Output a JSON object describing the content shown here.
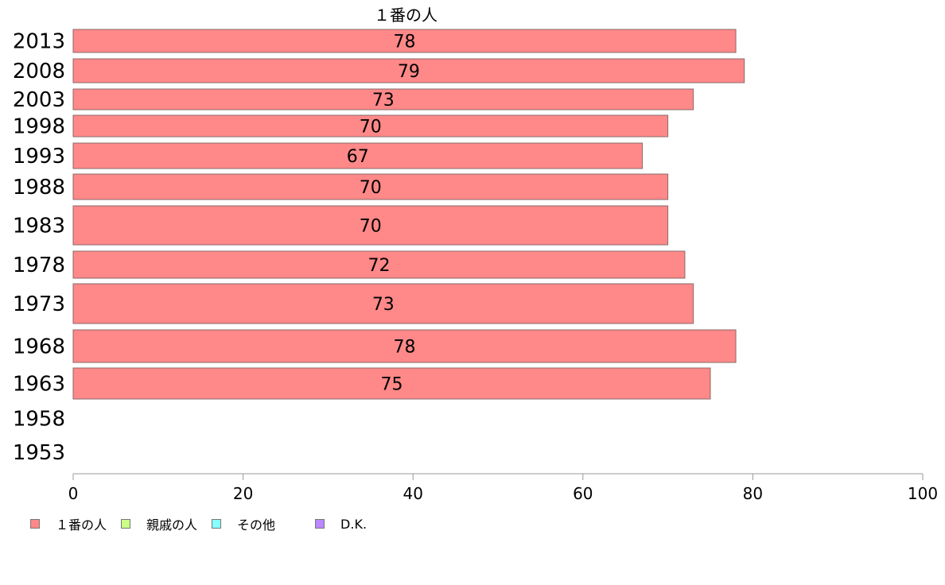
{
  "chart_data": {
    "type": "bar",
    "orientation": "horizontal",
    "title": "１番の人",
    "categories": [
      "2013",
      "2008",
      "2003",
      "1998",
      "1993",
      "1988",
      "1983",
      "1978",
      "1973",
      "1968",
      "1963",
      "1958",
      "1953"
    ],
    "series": [
      {
        "name": "１番の人",
        "color": "#ff8888",
        "values": [
          78,
          79,
          73,
          70,
          67,
          70,
          70,
          72,
          73,
          78,
          75,
          null,
          null
        ],
        "labels": [
          "78",
          "79",
          "73",
          "70",
          "67",
          "70",
          "70",
          "72",
          "73",
          "78",
          "75",
          "",
          ""
        ]
      }
    ],
    "xlim": [
      0,
      100
    ],
    "xticks": [
      "0",
      "20",
      "40",
      "60",
      "80",
      "100"
    ],
    "grid": false,
    "legend_position": "bottom-left"
  },
  "legend": [
    {
      "label": "１番の人",
      "color": "#ff8888"
    },
    {
      "label": "親戚の人",
      "color": "#ccff88"
    },
    {
      "label": "その他",
      "color": "#88ffff"
    },
    {
      "label": "D.K.",
      "color": "#bb88ff"
    }
  ]
}
